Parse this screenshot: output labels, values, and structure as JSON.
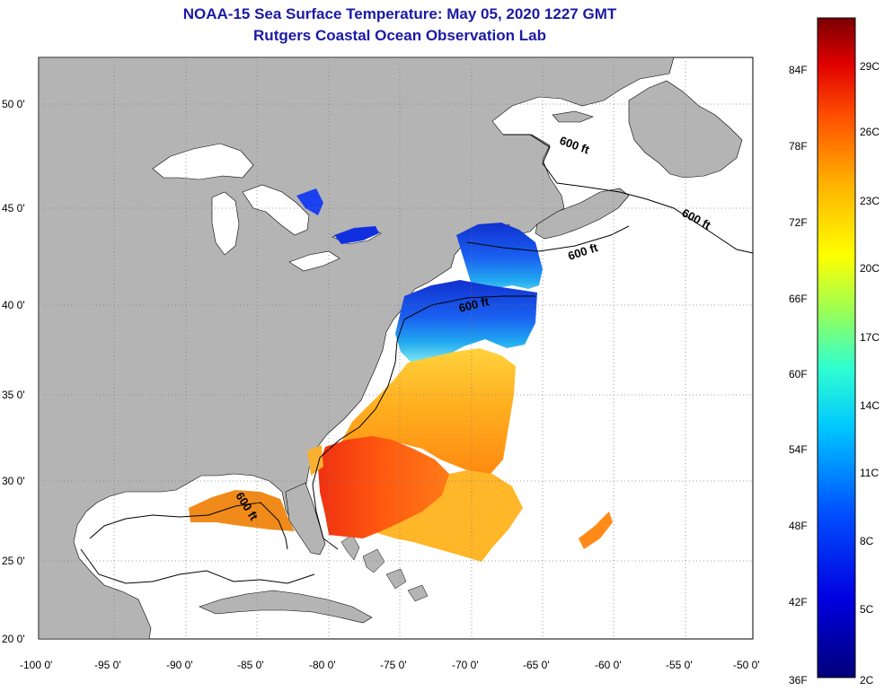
{
  "title": {
    "line1": "NOAA-15 Sea Surface Temperature:  May 05, 2020 1227 GMT",
    "line2": "Rutgers Coastal Ocean Observation Lab"
  },
  "map": {
    "lat_labels": [
      "50 0'",
      "45 0'",
      "40 0'",
      "35 0'",
      "30 0'",
      "25 0'",
      "20 0'"
    ],
    "lon_labels": [
      "-100 0'",
      "-95 0'",
      "-90 0'",
      "-85 0'",
      "-80 0'",
      "-75 0'",
      "-70 0'",
      "-65 0'",
      "-60 0'",
      "-55 0'",
      "-50 0'"
    ],
    "contour_labels": [
      "600 ft",
      "600 ft",
      "600 ft",
      "600 ft",
      "600 ft"
    ],
    "colors": {
      "land": "#b4b4b4",
      "ocean": "#ffffff",
      "grid": "#808080"
    }
  },
  "colorbar": {
    "fahrenheit": [
      "84F",
      "78F",
      "72F",
      "66F",
      "60F",
      "54F",
      "48F",
      "42F",
      "36F"
    ],
    "celsius": [
      "29C",
      "26C",
      "23C",
      "20C",
      "17C",
      "14C",
      "11C",
      "8C",
      "5C",
      "2C"
    ]
  }
}
